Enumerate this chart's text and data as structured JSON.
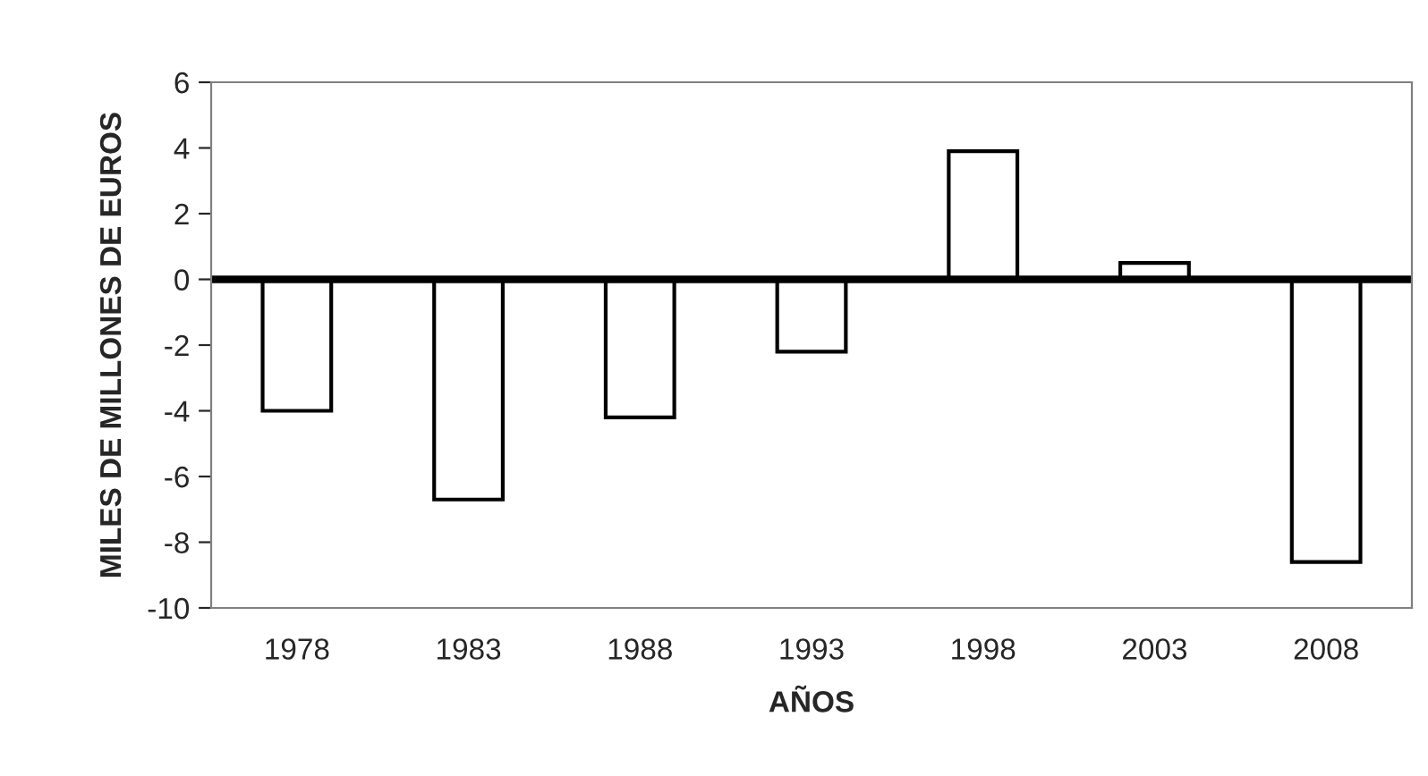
{
  "chart_data": {
    "type": "bar",
    "xlabel": "AÑOS",
    "ylabel": "MILES DE MILLONES DE EUROS",
    "categories": [
      "1978",
      "1983",
      "1988",
      "1993",
      "1998",
      "2003",
      "2008"
    ],
    "values": [
      -4.0,
      -6.7,
      -4.2,
      -2.2,
      3.9,
      0.5,
      -8.6
    ],
    "color": "#ffffff",
    "ylim": [
      -10,
      6
    ],
    "yticks": [
      -10,
      -8,
      -6,
      -4,
      -2,
      0,
      2,
      4,
      6
    ],
    "grid": false,
    "legend": false,
    "ref_lines": [
      {
        "axis": "y",
        "value": 0,
        "color": "#000000",
        "line_style": "solid"
      }
    ]
  }
}
